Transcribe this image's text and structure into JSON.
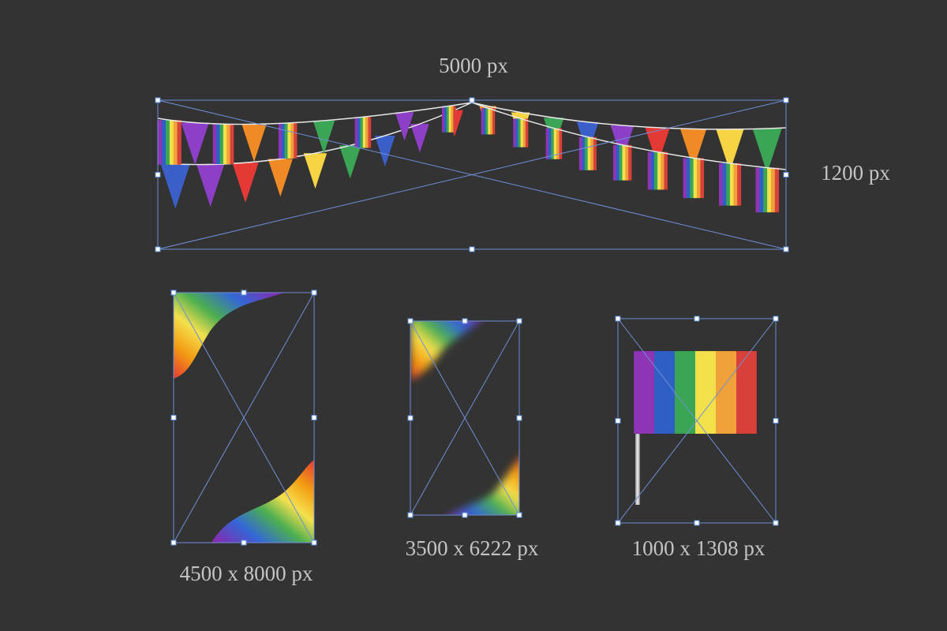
{
  "banner": {
    "width_label": "5000 px",
    "height_label": "1200 px"
  },
  "items": [
    {
      "label": "4500 x 8000 px"
    },
    {
      "label": "3500 x 6222 px"
    },
    {
      "label": "1000 x 1308 px"
    }
  ]
}
